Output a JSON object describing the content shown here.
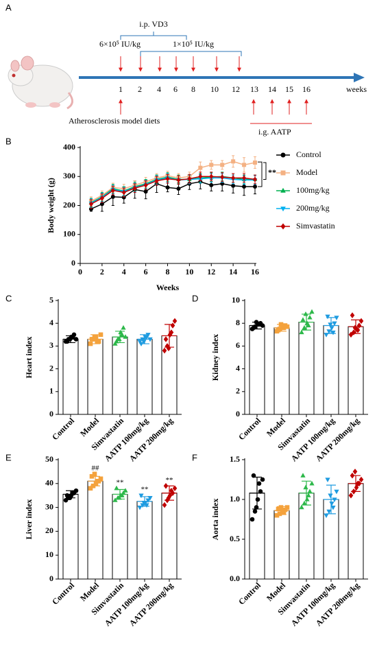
{
  "timeline": {
    "panel_label": "A",
    "dose_label": "i.p. VD3",
    "first_dose": "6×10⁵ IU/kg",
    "later_dose": "1×10⁵ IU/kg",
    "weeks": [
      1,
      2,
      4,
      6,
      8,
      10,
      12,
      13,
      14,
      15,
      16
    ],
    "axis_label": "weeks",
    "diet_label": "Atherosclerosis model diets",
    "treatment_label": "i.g. AATP"
  },
  "chart_data": [
    {
      "type": "line",
      "panel_label": "B",
      "ylabel": "Body weight (g)",
      "xlabel": "Weeks",
      "significance": "**",
      "x": [
        1,
        2,
        3,
        4,
        5,
        6,
        7,
        8,
        9,
        10,
        11,
        12,
        13,
        14,
        15,
        16
      ],
      "series": [
        {
          "name": "Control",
          "color": "#000000",
          "marker": "circle",
          "values": [
            188,
            205,
            230,
            228,
            255,
            248,
            275,
            262,
            258,
            275,
            282,
            270,
            275,
            268,
            265,
            265
          ],
          "errors": [
            8,
            25,
            30,
            20,
            30,
            25,
            30,
            15,
            20,
            20,
            25,
            20,
            25,
            25,
            30,
            25
          ]
        },
        {
          "name": "Model",
          "color": "#f4b183",
          "marker": "square",
          "values": [
            215,
            235,
            262,
            258,
            270,
            282,
            295,
            303,
            295,
            300,
            330,
            340,
            340,
            352,
            340,
            348
          ],
          "errors": [
            15,
            15,
            15,
            15,
            15,
            15,
            15,
            15,
            15,
            15,
            20,
            15,
            15,
            20,
            25,
            20
          ]
        },
        {
          "name": "100mg/kg",
          "color": "#00b050",
          "marker": "triangle-up",
          "values": [
            210,
            230,
            258,
            250,
            265,
            275,
            290,
            298,
            290,
            290,
            295,
            298,
            300,
            295,
            290,
            290
          ],
          "errors": [
            15,
            15,
            15,
            15,
            15,
            15,
            15,
            15,
            15,
            15,
            15,
            15,
            15,
            15,
            15,
            15
          ]
        },
        {
          "name": "200mg/kg",
          "color": "#00b0f0",
          "marker": "triangle-down",
          "values": [
            208,
            228,
            255,
            248,
            262,
            272,
            288,
            295,
            288,
            290,
            292,
            295,
            295,
            290,
            288,
            288
          ],
          "errors": [
            15,
            15,
            15,
            15,
            15,
            15,
            15,
            15,
            15,
            15,
            15,
            15,
            15,
            15,
            15,
            15
          ]
        },
        {
          "name": "Simvastatin",
          "color": "#c00000",
          "marker": "diamond",
          "values": [
            205,
            225,
            252,
            245,
            260,
            270,
            285,
            292,
            288,
            292,
            300,
            300,
            298,
            295,
            295,
            290
          ],
          "errors": [
            15,
            15,
            15,
            15,
            15,
            15,
            15,
            15,
            15,
            15,
            15,
            15,
            15,
            15,
            15,
            15
          ]
        }
      ],
      "xlim": [
        0,
        16
      ],
      "ylim": [
        0,
        400
      ],
      "xticks": [
        0,
        2,
        4,
        6,
        8,
        10,
        12,
        14,
        16
      ],
      "yticks": [
        0,
        100,
        200,
        300,
        400
      ]
    },
    {
      "type": "dot_bar",
      "panel_label": "C",
      "ylabel": "Heart index",
      "categories": [
        "Control",
        "Model",
        "Simvastatin",
        "AATP 100mg/kg",
        "AATP 200mg/kg"
      ],
      "colors": [
        "#000000",
        "#f4a23c",
        "#2db84a",
        "#1e9be0",
        "#c00000"
      ],
      "markers": [
        "circle",
        "square",
        "triangle-up",
        "triangle-down",
        "diamond"
      ],
      "means": [
        3.3,
        3.3,
        3.4,
        3.3,
        3.45
      ],
      "errors": [
        0.15,
        0.2,
        0.25,
        0.2,
        0.5
      ],
      "points": [
        [
          3.2,
          3.3,
          3.4,
          3.5,
          3.3,
          3.2,
          3.4,
          3.3
        ],
        [
          3.1,
          3.3,
          3.4,
          3.2,
          3.5,
          3.3,
          3.2,
          3.4
        ],
        [
          3.1,
          3.3,
          3.6,
          3.8,
          3.4,
          3.2,
          3.5,
          3.3
        ],
        [
          3.2,
          3.3,
          3.4,
          3.5,
          3.3,
          3.1,
          3.4,
          3.2
        ],
        [
          2.8,
          3.0,
          3.5,
          3.9,
          4.1,
          3.3,
          3.6,
          2.9
        ]
      ],
      "ylim": [
        0,
        5
      ],
      "yticks": [
        0,
        1,
        2,
        3,
        4,
        5
      ]
    },
    {
      "type": "dot_bar",
      "panel_label": "D",
      "ylabel": "Kidney index",
      "categories": [
        "Control",
        "Model",
        "Simvastatin",
        "AATP 100mg/kg",
        "AATP 200mg/kg"
      ],
      "colors": [
        "#000000",
        "#f4a23c",
        "#2db84a",
        "#1e9be0",
        "#c00000"
      ],
      "markers": [
        "circle",
        "square",
        "triangle-up",
        "triangle-down",
        "diamond"
      ],
      "means": [
        7.8,
        7.6,
        8.1,
        7.8,
        7.7
      ],
      "errors": [
        0.3,
        0.3,
        0.7,
        0.7,
        0.6
      ],
      "points": [
        [
          7.5,
          7.7,
          7.9,
          8.0,
          7.8,
          7.6,
          7.9,
          8.1
        ],
        [
          7.3,
          7.5,
          7.6,
          7.8,
          7.7,
          7.4,
          7.6,
          7.9
        ],
        [
          7.2,
          7.6,
          8.0,
          8.5,
          9.0,
          8.3,
          7.8,
          8.8
        ],
        [
          7.0,
          7.3,
          7.6,
          8.0,
          8.5,
          8.6,
          7.2,
          7.9
        ],
        [
          7.0,
          7.2,
          7.5,
          7.8,
          8.2,
          8.7,
          7.4,
          7.6
        ]
      ],
      "ylim": [
        0,
        10
      ],
      "yticks": [
        0,
        2,
        4,
        6,
        8,
        10
      ]
    },
    {
      "type": "dot_bar",
      "panel_label": "E",
      "ylabel": "Liver index",
      "categories": [
        "Control",
        "Model",
        "Simvastatin",
        "AATP 100mg/kg",
        "AATP 200mg/kg"
      ],
      "colors": [
        "#000000",
        "#f4a23c",
        "#2db84a",
        "#1e9be0",
        "#c00000"
      ],
      "markers": [
        "circle",
        "square",
        "triangle-up",
        "triangle-down",
        "diamond"
      ],
      "means": [
        35.5,
        41,
        35.5,
        32.5,
        36
      ],
      "errors": [
        1.5,
        2,
        2,
        2,
        3
      ],
      "points": [
        [
          33,
          34,
          35,
          36,
          37,
          35,
          36,
          34
        ],
        [
          38,
          39,
          40,
          41,
          42,
          43,
          41,
          44
        ],
        [
          33,
          34,
          35,
          36,
          37,
          38,
          35,
          34
        ],
        [
          30,
          31,
          32,
          33,
          34,
          35,
          31,
          32
        ],
        [
          31,
          33,
          35,
          36,
          38,
          39,
          37,
          34
        ]
      ],
      "annotations": [
        null,
        "##",
        "**",
        "**",
        "**"
      ],
      "ylim": [
        0,
        50
      ],
      "yticks": [
        0,
        10,
        20,
        30,
        40,
        50
      ]
    },
    {
      "type": "dot_bar",
      "panel_label": "F",
      "ylabel": "Aorta index",
      "categories": [
        "Control",
        "Model",
        "Simvastatin",
        "AATP 100mg/kg",
        "AATP 200mg/kg"
      ],
      "colors": [
        "#000000",
        "#f4a23c",
        "#2db84a",
        "#1e9be0",
        "#c00000"
      ],
      "markers": [
        "circle",
        "square",
        "triangle-up",
        "triangle-down",
        "diamond"
      ],
      "means": [
        1.08,
        0.86,
        1.08,
        1.0,
        1.2
      ],
      "errors": [
        0.2,
        0.05,
        0.15,
        0.18,
        0.1
      ],
      "points": [
        [
          0.75,
          0.85,
          1.0,
          1.1,
          1.25,
          1.3,
          1.2,
          0.9
        ],
        [
          0.8,
          0.82,
          0.85,
          0.87,
          0.9,
          0.88,
          0.84,
          0.9
        ],
        [
          0.9,
          0.95,
          1.0,
          1.1,
          1.2,
          1.3,
          1.05,
          1.15
        ],
        [
          0.8,
          0.85,
          0.95,
          1.0,
          1.1,
          1.25,
          0.9,
          1.05
        ],
        [
          1.05,
          1.1,
          1.15,
          1.2,
          1.25,
          1.3,
          1.2,
          1.35
        ]
      ],
      "ylim": [
        0,
        1.5
      ],
      "yticks": [
        {
          "value": 0,
          "label": "0.0"
        },
        0.5,
        {
          "value": 1,
          "label": "1.0"
        },
        1.5
      ]
    }
  ]
}
